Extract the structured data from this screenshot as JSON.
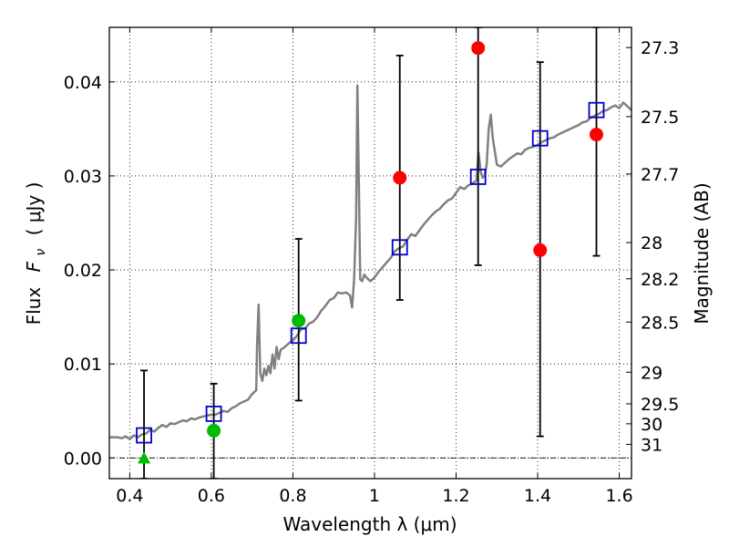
{
  "chart_data": {
    "type": "scatter",
    "xlabel": "Wavelength  λ (μm)",
    "ylabel_text": "Flux",
    "ylabel_symbol": "F",
    "ylabel_subscript": "ν",
    "ylabel_units": "( μJy )",
    "y2label": "Magnitude (AB)",
    "xlim": [
      0.35,
      1.63
    ],
    "ylim": [
      -0.0022,
      0.0458
    ],
    "grid": true,
    "x_ticks": [
      0.4,
      0.6,
      0.8,
      1.0,
      1.2,
      1.4,
      1.6
    ],
    "x_tick_labels": [
      "0.4",
      "0.6",
      "0.8",
      "1",
      "1.2",
      "1.4",
      "1.6"
    ],
    "y_ticks": [
      0.0,
      0.01,
      0.02,
      0.03,
      0.04
    ],
    "y_tick_labels": [
      "0.00",
      "0.01",
      "0.02",
      "0.03",
      "0.04"
    ],
    "mag_ticks": [
      27.3,
      27.5,
      27.7,
      28,
      28.2,
      28.5,
      29,
      29.5,
      30,
      31
    ],
    "mag_tick_labels": [
      "27.3",
      "27.5",
      "27.7",
      "28",
      "28.2",
      "28.5",
      "29",
      "29.5",
      "30",
      "31"
    ],
    "colors": {
      "spectrum": "#808080",
      "model": "#0000cc",
      "detection": "#ff0000",
      "green": "#00bb00",
      "errorbar": "#000000",
      "grid": "#000000"
    },
    "spectrum": [
      [
        0.35,
        0.0022
      ],
      [
        0.37,
        0.0022
      ],
      [
        0.38,
        0.0021
      ],
      [
        0.39,
        0.0023
      ],
      [
        0.4,
        0.002
      ],
      [
        0.41,
        0.0024
      ],
      [
        0.42,
        0.0022
      ],
      [
        0.43,
        0.0025
      ],
      [
        0.44,
        0.0026
      ],
      [
        0.45,
        0.003
      ],
      [
        0.46,
        0.0028
      ],
      [
        0.47,
        0.0032
      ],
      [
        0.48,
        0.0035
      ],
      [
        0.49,
        0.0033
      ],
      [
        0.5,
        0.0037
      ],
      [
        0.51,
        0.0036
      ],
      [
        0.52,
        0.0038
      ],
      [
        0.53,
        0.004
      ],
      [
        0.54,
        0.0039
      ],
      [
        0.55,
        0.0042
      ],
      [
        0.56,
        0.0041
      ],
      [
        0.57,
        0.0043
      ],
      [
        0.58,
        0.0044
      ],
      [
        0.59,
        0.0045
      ],
      [
        0.6,
        0.0046
      ],
      [
        0.61,
        0.0046
      ],
      [
        0.62,
        0.0048
      ],
      [
        0.63,
        0.005
      ],
      [
        0.64,
        0.0049
      ],
      [
        0.65,
        0.0053
      ],
      [
        0.66,
        0.0055
      ],
      [
        0.67,
        0.0058
      ],
      [
        0.68,
        0.006
      ],
      [
        0.69,
        0.0062
      ],
      [
        0.7,
        0.0068
      ],
      [
        0.71,
        0.0072
      ],
      [
        0.712,
        0.012
      ],
      [
        0.716,
        0.0163
      ],
      [
        0.72,
        0.009
      ],
      [
        0.725,
        0.0082
      ],
      [
        0.73,
        0.0095
      ],
      [
        0.735,
        0.0088
      ],
      [
        0.74,
        0.0098
      ],
      [
        0.745,
        0.009
      ],
      [
        0.75,
        0.011
      ],
      [
        0.755,
        0.0095
      ],
      [
        0.76,
        0.0118
      ],
      [
        0.765,
        0.0105
      ],
      [
        0.77,
        0.0115
      ],
      [
        0.78,
        0.0118
      ],
      [
        0.79,
        0.0122
      ],
      [
        0.8,
        0.0125
      ],
      [
        0.81,
        0.013
      ],
      [
        0.82,
        0.0137
      ],
      [
        0.83,
        0.0138
      ],
      [
        0.84,
        0.0143
      ],
      [
        0.85,
        0.0145
      ],
      [
        0.86,
        0.015
      ],
      [
        0.87,
        0.0157
      ],
      [
        0.88,
        0.0162
      ],
      [
        0.89,
        0.0168
      ],
      [
        0.9,
        0.017
      ],
      [
        0.91,
        0.0176
      ],
      [
        0.92,
        0.0175
      ],
      [
        0.93,
        0.0176
      ],
      [
        0.94,
        0.0173
      ],
      [
        0.945,
        0.016
      ],
      [
        0.95,
        0.019
      ],
      [
        0.955,
        0.0255
      ],
      [
        0.958,
        0.0396
      ],
      [
        0.962,
        0.028
      ],
      [
        0.965,
        0.019
      ],
      [
        0.97,
        0.0188
      ],
      [
        0.975,
        0.0195
      ],
      [
        0.98,
        0.0192
      ],
      [
        0.99,
        0.0188
      ],
      [
        1.0,
        0.0192
      ],
      [
        1.01,
        0.0198
      ],
      [
        1.02,
        0.0203
      ],
      [
        1.03,
        0.0208
      ],
      [
        1.04,
        0.0213
      ],
      [
        1.05,
        0.022
      ],
      [
        1.06,
        0.0223
      ],
      [
        1.07,
        0.0225
      ],
      [
        1.08,
        0.0232
      ],
      [
        1.09,
        0.0238
      ],
      [
        1.1,
        0.0236
      ],
      [
        1.11,
        0.0242
      ],
      [
        1.12,
        0.0248
      ],
      [
        1.13,
        0.0253
      ],
      [
        1.14,
        0.0258
      ],
      [
        1.15,
        0.0262
      ],
      [
        1.16,
        0.0265
      ],
      [
        1.17,
        0.027
      ],
      [
        1.18,
        0.0274
      ],
      [
        1.19,
        0.0276
      ],
      [
        1.2,
        0.0282
      ],
      [
        1.21,
        0.0288
      ],
      [
        1.22,
        0.0286
      ],
      [
        1.23,
        0.029
      ],
      [
        1.24,
        0.0292
      ],
      [
        1.25,
        0.0295
      ],
      [
        1.255,
        0.0325
      ],
      [
        1.26,
        0.0305
      ],
      [
        1.265,
        0.0298
      ],
      [
        1.27,
        0.03
      ],
      [
        1.275,
        0.0312
      ],
      [
        1.28,
        0.035
      ],
      [
        1.285,
        0.0365
      ],
      [
        1.29,
        0.034
      ],
      [
        1.3,
        0.0312
      ],
      [
        1.31,
        0.031
      ],
      [
        1.32,
        0.0314
      ],
      [
        1.33,
        0.0318
      ],
      [
        1.34,
        0.0321
      ],
      [
        1.35,
        0.0324
      ],
      [
        1.36,
        0.0323
      ],
      [
        1.37,
        0.0328
      ],
      [
        1.38,
        0.033
      ],
      [
        1.39,
        0.0331
      ],
      [
        1.4,
        0.0333
      ],
      [
        1.41,
        0.0336
      ],
      [
        1.42,
        0.0338
      ],
      [
        1.43,
        0.034
      ],
      [
        1.44,
        0.0341
      ],
      [
        1.45,
        0.0344
      ],
      [
        1.46,
        0.0346
      ],
      [
        1.47,
        0.0348
      ],
      [
        1.48,
        0.035
      ],
      [
        1.49,
        0.0352
      ],
      [
        1.5,
        0.0354
      ],
      [
        1.51,
        0.0357
      ],
      [
        1.52,
        0.0358
      ],
      [
        1.53,
        0.0362
      ],
      [
        1.54,
        0.0364
      ],
      [
        1.55,
        0.0366
      ],
      [
        1.56,
        0.0369
      ],
      [
        1.57,
        0.037
      ],
      [
        1.58,
        0.0373
      ],
      [
        1.59,
        0.0375
      ],
      [
        1.6,
        0.0372
      ],
      [
        1.61,
        0.0378
      ],
      [
        1.62,
        0.0374
      ],
      [
        1.63,
        0.037
      ]
    ],
    "model_points": [
      {
        "x": 0.435,
        "y": 0.0024
      },
      {
        "x": 0.606,
        "y": 0.0047
      },
      {
        "x": 0.814,
        "y": 0.013
      },
      {
        "x": 1.062,
        "y": 0.0224
      },
      {
        "x": 1.254,
        "y": 0.0299
      },
      {
        "x": 1.406,
        "y": 0.034
      },
      {
        "x": 1.544,
        "y": 0.037
      }
    ],
    "detections": [
      {
        "x": 1.062,
        "y": 0.0298,
        "yerr_low": 0.0168,
        "yerr_high": 0.0428
      },
      {
        "x": 1.254,
        "y": 0.0436,
        "yerr_low": 0.0205,
        "yerr_high": 0.0458
      },
      {
        "x": 1.406,
        "y": 0.0221,
        "yerr_low": 0.0023,
        "yerr_high": 0.0421
      },
      {
        "x": 1.544,
        "y": 0.0344,
        "yerr_low": 0.0215,
        "yerr_high": 0.0458
      }
    ],
    "green_points": [
      {
        "x": 0.606,
        "y": 0.0029,
        "yerr_low": -0.0022,
        "yerr_high": 0.0079
      },
      {
        "x": 0.814,
        "y": 0.0146,
        "yerr_low": 0.0061,
        "yerr_high": 0.0233
      }
    ],
    "green_triangle": {
      "x": 0.435,
      "y": 0.0,
      "yerr_low": -0.0022,
      "yerr_high": 0.0093
    }
  }
}
